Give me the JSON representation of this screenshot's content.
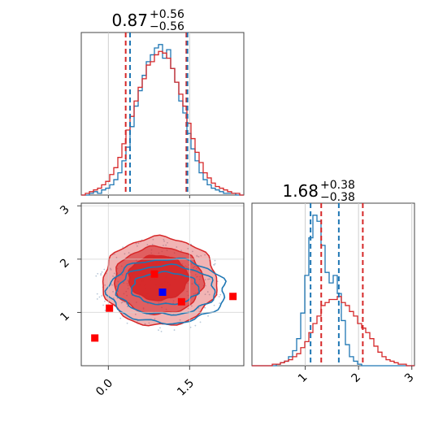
{
  "chart_data": {
    "type": "corner",
    "series": [
      {
        "name": "",
        "color": "#1f77b4"
      },
      {
        "name": "",
        "color": "#d62728"
      }
    ],
    "panels": [
      {
        "id": "hist-param1",
        "type": "histogram",
        "title_value": "0.87",
        "title_upper": "+0.56",
        "title_lower": "−0.56",
        "xlim": [
          -0.5,
          2.5
        ],
        "bins": [
          -0.5,
          -0.425,
          -0.35,
          -0.275,
          -0.2,
          -0.125,
          -0.05,
          0.025,
          0.1,
          0.175,
          0.25,
          0.325,
          0.4,
          0.475,
          0.55,
          0.625,
          0.7,
          0.775,
          0.85,
          0.925,
          1.0,
          1.075,
          1.15,
          1.225,
          1.3,
          1.375,
          1.45,
          1.525,
          1.6,
          1.675,
          1.75,
          1.825,
          1.9,
          1.975,
          2.05,
          2.125,
          2.2,
          2.275,
          2.35,
          2.425,
          2.5
        ],
        "blue_counts": [
          0,
          0,
          1,
          2,
          1,
          3,
          4,
          6,
          9,
          13,
          20,
          28,
          40,
          52,
          61,
          70,
          78,
          82,
          86,
          88,
          80,
          85,
          74,
          66,
          55,
          48,
          36,
          27,
          20,
          13,
          9,
          6,
          4,
          3,
          2,
          1,
          1,
          1,
          0,
          0
        ],
        "red_counts": [
          0,
          1,
          2,
          3,
          4,
          6,
          8,
          12,
          16,
          22,
          30,
          38,
          46,
          55,
          63,
          68,
          76,
          78,
          82,
          84,
          83,
          80,
          74,
          66,
          59,
          52,
          42,
          33,
          25,
          19,
          13,
          10,
          7,
          5,
          4,
          3,
          2,
          1,
          1,
          0
        ],
        "red_lines": [
          0.32,
          1.44
        ],
        "blue_lines": [
          0.4,
          1.46
        ]
      },
      {
        "id": "hist-param2",
        "type": "histogram",
        "title_value": "1.68",
        "title_upper": "+0.38",
        "title_lower": "−0.38",
        "xlim": [
          0.0,
          3.05
        ],
        "xticks": [
          1,
          2,
          3
        ],
        "xticklabels": [
          "1",
          "2",
          "3"
        ],
        "bins": [
          0.0,
          0.0763,
          0.1525,
          0.2288,
          0.305,
          0.3813,
          0.4575,
          0.5338,
          0.61,
          0.6863,
          0.7625,
          0.8388,
          0.915,
          0.9913,
          1.0675,
          1.1438,
          1.22,
          1.2963,
          1.3725,
          1.4488,
          1.525,
          1.6013,
          1.6775,
          1.7538,
          1.83,
          1.9063,
          1.9825,
          2.0588,
          2.135,
          2.2113,
          2.2875,
          2.3638,
          2.44,
          2.5163,
          2.5925,
          2.6688,
          2.745,
          2.8213,
          2.8975,
          2.9738,
          3.05
        ],
        "blue_counts": [
          0,
          0,
          0,
          0,
          0,
          0,
          1,
          2,
          3,
          6,
          10,
          18,
          35,
          60,
          85,
          100,
          96,
          80,
          62,
          55,
          60,
          48,
          30,
          14,
          6,
          3,
          1,
          0,
          0,
          0,
          0,
          0,
          0,
          0,
          0,
          0,
          0,
          0,
          0,
          0
        ],
        "red_counts": [
          0,
          0,
          0,
          0,
          0,
          1,
          1,
          2,
          3,
          4,
          6,
          8,
          12,
          16,
          22,
          28,
          33,
          40,
          42,
          44,
          44,
          46,
          42,
          40,
          36,
          33,
          28,
          25,
          22,
          18,
          13,
          9,
          6,
          4,
          3,
          2,
          1,
          1,
          0,
          0
        ],
        "red_lines": [
          1.3,
          2.08
        ],
        "blue_lines": [
          1.1,
          1.63
        ]
      },
      {
        "id": "joint",
        "type": "contour",
        "xlim": [
          -0.5,
          2.5
        ],
        "ylim": [
          0.0,
          3.05
        ],
        "xticks": [
          0.0,
          1.5
        ],
        "xticklabels": [
          "0.0",
          "1.5"
        ],
        "yticks": [
          1,
          2,
          3
        ],
        "yticklabels": [
          "1",
          "2",
          "3"
        ],
        "red_contours": [
          {
            "cx": 0.92,
            "cy": 1.65,
            "rx": 0.55,
            "ry": 0.42
          },
          {
            "cx": 0.93,
            "cy": 1.6,
            "rx": 0.82,
            "ry": 0.63
          },
          {
            "cx": 0.95,
            "cy": 1.58,
            "rx": 1.05,
            "ry": 0.83
          }
        ],
        "blue_contours": [
          {
            "cx": 1.05,
            "cy": 1.45,
            "rx": 0.62,
            "ry": 0.3
          },
          {
            "cx": 1.07,
            "cy": 1.42,
            "rx": 0.9,
            "ry": 0.46
          },
          {
            "cx": 1.08,
            "cy": 1.4,
            "rx": 1.08,
            "ry": 0.6
          }
        ],
        "red_points": [
          {
            "x": 0.85,
            "y": 1.72
          },
          {
            "x": 0.02,
            "y": 1.08
          },
          {
            "x": 1.35,
            "y": 1.2
          },
          {
            "x": 2.3,
            "y": 1.3
          },
          {
            "x": -0.25,
            "y": 0.52
          }
        ],
        "blue_points": [
          {
            "x": 1.0,
            "y": 1.38
          }
        ],
        "scatter_color": "#b8c8d8"
      }
    ]
  }
}
